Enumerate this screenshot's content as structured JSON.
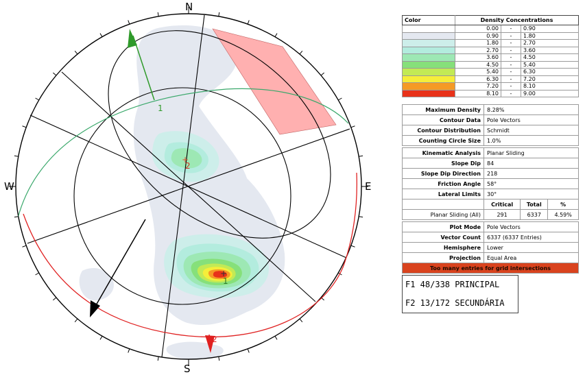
{
  "directions": {
    "n": "N",
    "s": "S",
    "e": "E",
    "w": "W"
  },
  "plane_labels": {
    "plane_1": "1",
    "plane_2": "2",
    "pole_1": "1",
    "pole_2": "2",
    "mean_1": "1"
  },
  "legend": {
    "color_header": "Color",
    "density_header": "Density Concentrations",
    "rows": [
      {
        "color": "#ffffff",
        "min": "0.00",
        "sep": "-",
        "max": "0.90"
      },
      {
        "color": "#e4e8f0",
        "min": "0.90",
        "sep": "-",
        "max": "1.80"
      },
      {
        "color": "#cdeeea",
        "min": "1.80",
        "sep": "-",
        "max": "2.70"
      },
      {
        "color": "#b3ecde",
        "min": "2.70",
        "sep": "-",
        "max": "3.60"
      },
      {
        "color": "#9de8b4",
        "min": "3.60",
        "sep": "-",
        "max": "4.50"
      },
      {
        "color": "#86e07a",
        "min": "4.50",
        "sep": "-",
        "max": "5.40"
      },
      {
        "color": "#c2ea55",
        "min": "5.40",
        "sep": "-",
        "max": "6.30"
      },
      {
        "color": "#f5ee3a",
        "min": "6.30",
        "sep": "-",
        "max": "7.20"
      },
      {
        "color": "#f59a25",
        "min": "7.20",
        "sep": "-",
        "max": "8.10"
      },
      {
        "color": "#e8321a",
        "min": "8.10",
        "sep": "-",
        "max": "9.00"
      }
    ]
  },
  "contour": {
    "max_density_label": "Maximum Density",
    "max_density": "8.28%",
    "contour_data_label": "Contour Data",
    "contour_data": "Pole Vectors",
    "distribution_label": "Contour Distribution",
    "distribution": "Schmidt",
    "circle_size_label": "Counting Circle Size",
    "circle_size": "1.0%"
  },
  "kinematic": {
    "analysis_label": "Kinematic Analysis",
    "analysis": "Planar Sliding",
    "slope_dip_label": "Slope Dip",
    "slope_dip": "84",
    "slope_dir_label": "Slope Dip Direction",
    "slope_dir": "218",
    "friction_label": "Friction Angle",
    "friction": "58°",
    "lateral_label": "Lateral Limits",
    "lateral": "30°",
    "critical_header": "Critical",
    "total_header": "Total",
    "percent_header": "%",
    "row_label": "Planar Sliding (All)",
    "critical": "291",
    "total": "6337",
    "percent": "4.59%"
  },
  "plot": {
    "mode_label": "Plot Mode",
    "mode": "Pole Vectors",
    "count_label": "Vector Count",
    "count": "6337 (6337 Entries)",
    "hemisphere_label": "Hemisphere",
    "hemisphere": "Lower",
    "projection_label": "Projection",
    "projection": "Equal Area",
    "warning": "Too many entries for grid intersections"
  },
  "sets": {
    "f1": "F1  48/338 PRINCIPAL",
    "f2": "F2  13/172 SECUNDÁRIA"
  },
  "colors": {
    "green_plane": "#3aa86b",
    "red_plane": "#e02222",
    "arrow_green": "#2f9a2a",
    "arrow_red": "#e02020",
    "critical_zone": "#ffb0b0"
  }
}
